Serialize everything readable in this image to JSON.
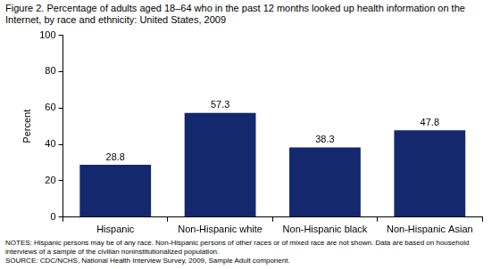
{
  "chart_data": {
    "type": "bar",
    "title": "Figure 2. Percentage of adults aged 18–64 who in the past 12 months looked up health information on the Internet, by race and ethnicity: United States, 2009",
    "categories": [
      "Hispanic",
      "Non-Hispanic white",
      "Non-Hispanic black",
      "Non-Hispanic Asian"
    ],
    "values": [
      28.8,
      57.3,
      38.3,
      47.8
    ],
    "color": "#14286e",
    "y_label": "Percent",
    "ylim": [
      0,
      100
    ],
    "yticks": [
      0,
      20,
      40,
      60,
      80,
      100
    ],
    "grid": false,
    "data_labels": true,
    "notes": "NOTES: Hispanic persons may be of any race. Non-Hispanic persons of other races or of mixed race are not shown. Data are based on household interviews of a sample of the civilian noninstitutionalized population.",
    "source": "SOURCE: CDC/NCHS, National Health Interview Survey, 2009, Sample Adult component."
  }
}
